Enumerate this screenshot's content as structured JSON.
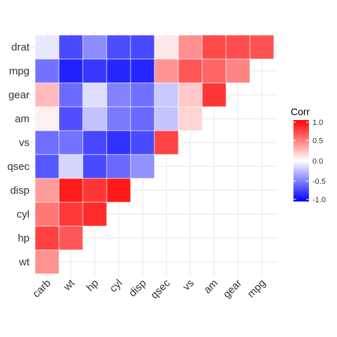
{
  "chart_data": {
    "type": "heatmap",
    "x_labels": [
      "carb",
      "wt",
      "hp",
      "cyl",
      "disp",
      "qsec",
      "vs",
      "am",
      "gear",
      "mpg"
    ],
    "y_labels": [
      "wt",
      "hp",
      "cyl",
      "disp",
      "qsec",
      "vs",
      "am",
      "gear",
      "mpg",
      "drat"
    ],
    "cells": [
      {
        "x": "carb",
        "y": "wt",
        "value": 0.43
      },
      {
        "x": "carb",
        "y": "hp",
        "value": 0.75
      },
      {
        "x": "carb",
        "y": "cyl",
        "value": 0.53
      },
      {
        "x": "carb",
        "y": "disp",
        "value": 0.39
      },
      {
        "x": "carb",
        "y": "qsec",
        "value": -0.66
      },
      {
        "x": "carb",
        "y": "vs",
        "value": -0.57
      },
      {
        "x": "carb",
        "y": "am",
        "value": 0.06
      },
      {
        "x": "carb",
        "y": "gear",
        "value": 0.27
      },
      {
        "x": "carb",
        "y": "mpg",
        "value": -0.55
      },
      {
        "x": "carb",
        "y": "drat",
        "value": -0.09
      },
      {
        "x": "wt",
        "y": "hp",
        "value": 0.66
      },
      {
        "x": "wt",
        "y": "cyl",
        "value": 0.78
      },
      {
        "x": "wt",
        "y": "disp",
        "value": 0.89
      },
      {
        "x": "wt",
        "y": "qsec",
        "value": -0.17
      },
      {
        "x": "wt",
        "y": "vs",
        "value": -0.55
      },
      {
        "x": "wt",
        "y": "am",
        "value": -0.69
      },
      {
        "x": "wt",
        "y": "gear",
        "value": -0.58
      },
      {
        "x": "wt",
        "y": "mpg",
        "value": -0.87
      },
      {
        "x": "wt",
        "y": "drat",
        "value": -0.71
      },
      {
        "x": "hp",
        "y": "cyl",
        "value": 0.83
      },
      {
        "x": "hp",
        "y": "disp",
        "value": 0.79
      },
      {
        "x": "hp",
        "y": "qsec",
        "value": -0.71
      },
      {
        "x": "hp",
        "y": "vs",
        "value": -0.72
      },
      {
        "x": "hp",
        "y": "am",
        "value": -0.24
      },
      {
        "x": "hp",
        "y": "gear",
        "value": -0.13
      },
      {
        "x": "hp",
        "y": "mpg",
        "value": -0.78
      },
      {
        "x": "hp",
        "y": "drat",
        "value": -0.45
      },
      {
        "x": "cyl",
        "y": "disp",
        "value": 0.9
      },
      {
        "x": "cyl",
        "y": "qsec",
        "value": -0.59
      },
      {
        "x": "cyl",
        "y": "vs",
        "value": -0.81
      },
      {
        "x": "cyl",
        "y": "am",
        "value": -0.52
      },
      {
        "x": "cyl",
        "y": "gear",
        "value": -0.49
      },
      {
        "x": "cyl",
        "y": "mpg",
        "value": -0.85
      },
      {
        "x": "cyl",
        "y": "drat",
        "value": -0.7
      },
      {
        "x": "disp",
        "y": "qsec",
        "value": -0.43
      },
      {
        "x": "disp",
        "y": "vs",
        "value": -0.71
      },
      {
        "x": "disp",
        "y": "am",
        "value": -0.59
      },
      {
        "x": "disp",
        "y": "gear",
        "value": -0.56
      },
      {
        "x": "disp",
        "y": "mpg",
        "value": -0.85
      },
      {
        "x": "disp",
        "y": "drat",
        "value": -0.71
      },
      {
        "x": "qsec",
        "y": "vs",
        "value": 0.74
      },
      {
        "x": "qsec",
        "y": "am",
        "value": -0.23
      },
      {
        "x": "qsec",
        "y": "gear",
        "value": -0.21
      },
      {
        "x": "qsec",
        "y": "mpg",
        "value": 0.42
      },
      {
        "x": "qsec",
        "y": "drat",
        "value": 0.09
      },
      {
        "x": "vs",
        "y": "am",
        "value": 0.17
      },
      {
        "x": "vs",
        "y": "gear",
        "value": 0.21
      },
      {
        "x": "vs",
        "y": "mpg",
        "value": 0.66
      },
      {
        "x": "vs",
        "y": "drat",
        "value": 0.44
      },
      {
        "x": "am",
        "y": "gear",
        "value": 0.79
      },
      {
        "x": "am",
        "y": "mpg",
        "value": 0.6
      },
      {
        "x": "am",
        "y": "drat",
        "value": 0.71
      },
      {
        "x": "gear",
        "y": "mpg",
        "value": 0.48
      },
      {
        "x": "gear",
        "y": "drat",
        "value": 0.7
      },
      {
        "x": "mpg",
        "y": "drat",
        "value": 0.68
      }
    ],
    "legend": {
      "title": "Corr",
      "ticks": [
        1.0,
        0.5,
        0.0,
        -0.5,
        -1.0
      ],
      "tick_labels": [
        "1.0",
        "0.5",
        "0.0",
        "-0.5",
        "-1.0"
      ],
      "range": [
        -1,
        1
      ],
      "colors": {
        "low": "#0000ff",
        "mid": "#ffffff",
        "high": "#ff0000"
      },
      "placement": "right"
    },
    "grid": true,
    "panel_background": "#ffffff",
    "grid_color": "#ebebeb",
    "x_tick_rotation": "45"
  }
}
